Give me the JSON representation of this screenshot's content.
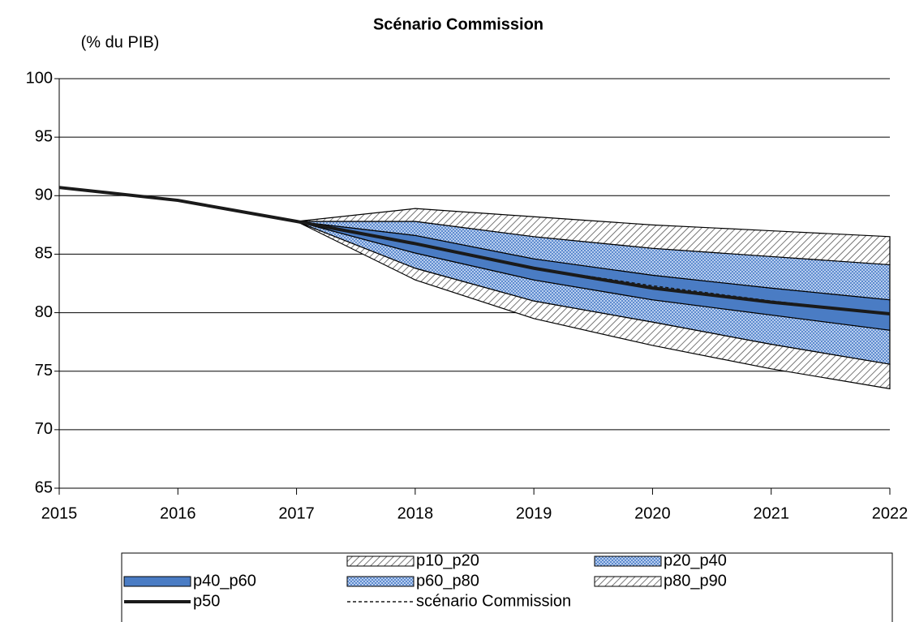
{
  "chart_data": {
    "type": "fan",
    "title": "Scénario Commission",
    "y_label": "(% du PIB)",
    "x": [
      2015,
      2016,
      2017,
      2018,
      2019,
      2020,
      2021,
      2022
    ],
    "xlim": [
      2015,
      2022
    ],
    "xticks": [
      2015,
      2016,
      2017,
      2018,
      2019,
      2020,
      2021,
      2022
    ],
    "ylim": [
      65,
      100
    ],
    "yticks": [
      65,
      70,
      75,
      80,
      85,
      90,
      95,
      100
    ],
    "grid": true,
    "legend": "bottom",
    "bands": [
      {
        "name": "p10_p20",
        "pattern": "hatch",
        "color": "#555555",
        "low": [
          null,
          null,
          87.8,
          82.8,
          79.5,
          77.2,
          75.2,
          73.5
        ],
        "high": [
          null,
          null,
          87.8,
          83.8,
          81.0,
          79.2,
          77.3,
          75.6
        ]
      },
      {
        "name": "p20_p40",
        "pattern": "dots",
        "color": "#7aa0d8",
        "low": [
          null,
          null,
          87.8,
          83.8,
          81.0,
          79.2,
          77.3,
          75.6
        ],
        "high": [
          null,
          null,
          87.8,
          85.1,
          82.8,
          81.1,
          79.8,
          78.5
        ]
      },
      {
        "name": "p40_p60",
        "pattern": "solid",
        "color": "#4a7cc4",
        "low": [
          null,
          null,
          87.8,
          85.1,
          82.8,
          81.1,
          79.8,
          78.5
        ],
        "high": [
          null,
          null,
          87.8,
          86.6,
          84.6,
          83.2,
          82.1,
          81.1
        ]
      },
      {
        "name": "p60_p80",
        "pattern": "dots",
        "color": "#7aa0d8",
        "low": [
          null,
          null,
          87.8,
          86.6,
          84.6,
          83.2,
          82.1,
          81.1
        ],
        "high": [
          null,
          null,
          87.8,
          87.8,
          86.5,
          85.5,
          84.8,
          84.1
        ]
      },
      {
        "name": "p80_p90",
        "pattern": "hatch",
        "color": "#555555",
        "low": [
          null,
          null,
          87.8,
          87.8,
          86.5,
          85.5,
          84.8,
          84.1
        ],
        "high": [
          null,
          null,
          87.8,
          88.9,
          88.2,
          87.5,
          87.0,
          86.5
        ]
      }
    ],
    "series": [
      {
        "name": "p50",
        "color": "#1a1a1a",
        "dash": false,
        "values": [
          90.7,
          89.6,
          87.8,
          85.9,
          83.8,
          82.1,
          80.9,
          79.9
        ]
      },
      {
        "name": "scénario Commission",
        "color": "#1a1a1a",
        "dash": true,
        "values": [
          null,
          null,
          87.8,
          85.9,
          83.8,
          82.3,
          81.0,
          79.9
        ]
      }
    ]
  }
}
